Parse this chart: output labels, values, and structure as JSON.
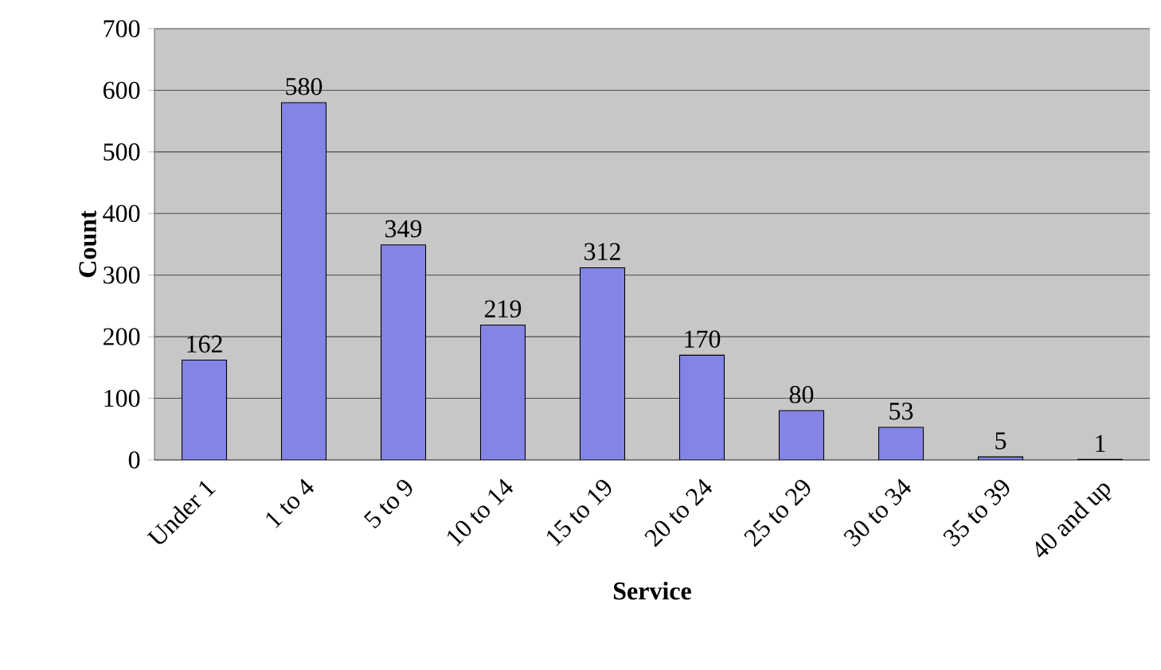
{
  "chart_data": {
    "type": "bar",
    "xlabel": "Service",
    "ylabel": "Count",
    "categories": [
      "Under 1",
      "1 to 4",
      "5 to 9",
      "10 to 14",
      "15 to 19",
      "20 to 24",
      "25 to 29",
      "30 to 34",
      "35 to 39",
      "40 and up"
    ],
    "values": [
      162,
      580,
      349,
      219,
      312,
      170,
      80,
      53,
      5,
      1
    ],
    "color": "#8484e6",
    "ylim": [
      0,
      700
    ],
    "yticks": [
      0,
      100,
      200,
      300,
      400,
      500,
      600,
      700
    ],
    "grid": "y",
    "data_labels": true
  }
}
